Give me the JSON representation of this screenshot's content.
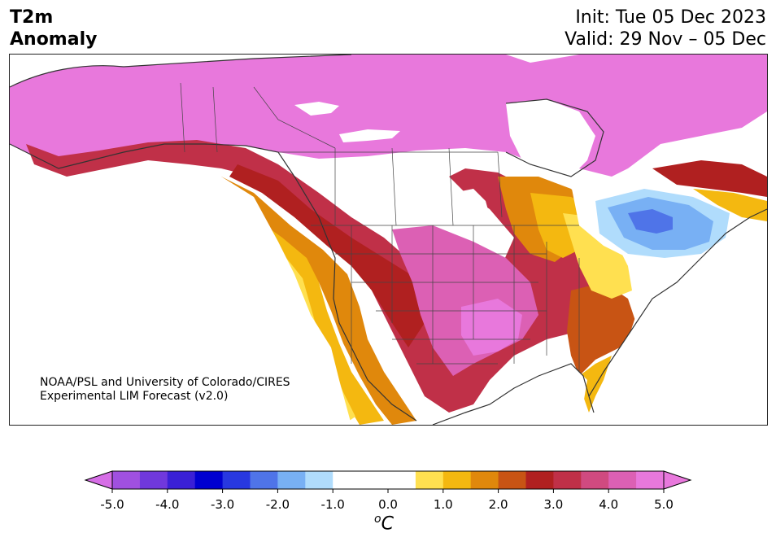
{
  "header": {
    "title_line1": "T2m",
    "title_line2": "Anomaly",
    "init_text": "Init: Tue 05 Dec 2023",
    "valid_text": "Valid: 29 Nov – 05 Dec"
  },
  "credit": {
    "line1": "NOAA/PSL and University of Colorado/CIRES",
    "line2": "Experimental LIM Forecast (v2.0)"
  },
  "colorbar": {
    "unit_prefix": "o",
    "unit_main": "C",
    "ticks": [
      "-5.0",
      "-4.0",
      "-3.0",
      "-2.0",
      "-1.0",
      "0.0",
      "1.0",
      "2.0",
      "3.0",
      "4.0",
      "5.0"
    ],
    "levels": [
      -5.0,
      -4.5,
      -4.0,
      -3.5,
      -3.0,
      -2.5,
      -2.0,
      -1.5,
      -1.0,
      -0.5,
      0.5,
      1.0,
      1.5,
      2.0,
      2.5,
      3.0,
      3.5,
      4.0,
      4.5,
      5.0
    ],
    "colors": [
      "#d66ee6",
      "#a050e0",
      "#7038dc",
      "#3a20d6",
      "#0000d0",
      "#2838e0",
      "#4f74e8",
      "#78b0f4",
      "#b0dcfc",
      "#ffffff",
      "#ffffff",
      "#ffe050",
      "#f4b810",
      "#e0880c",
      "#c85414",
      "#b02020",
      "#c03048",
      "#d04a80",
      "#dc60b4",
      "#e878dc"
    ],
    "min_color": "#d66ee6",
    "max_color": "#e878dc"
  },
  "map": {
    "region": "North America",
    "colors": {
      "land_outline": "#333333",
      "strongest_warm": "#e878dc",
      "cold_core": "#4f74e8"
    }
  }
}
